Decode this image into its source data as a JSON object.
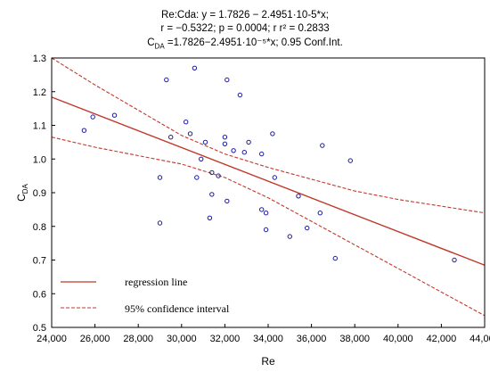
{
  "header": {
    "line1": "Re:Cda:     y = 1.7826 − 2.4951·10-5*x;",
    "line2": "r = −0.5322; p = 0.0004; r     r² = 0.2833",
    "line3": "C_DA =1.7826−2.4951·10⁻⁵*x; 0.95 Conf.Int."
  },
  "chart_data": {
    "type": "scatter",
    "xlabel": "Re",
    "ylabel": "C_DA",
    "xlim": [
      24000,
      44000
    ],
    "ylim": [
      0.5,
      1.3
    ],
    "xticks": [
      "24,000",
      "26,000",
      "28,000",
      "30,000",
      "32,000",
      "34,000",
      "36,000",
      "38,000",
      "40,000",
      "42,000",
      "44,000"
    ],
    "yticks": [
      "0.5",
      "0.6",
      "0.7",
      "0.8",
      "0.9",
      "1.0",
      "1.1",
      "1.2",
      "1.3"
    ],
    "grid": false,
    "regression": {
      "intercept": 1.7826,
      "slope": -2.4951e-05
    },
    "upper_ci": [
      [
        24000,
        1.3
      ],
      [
        26000,
        1.22
      ],
      [
        28000,
        1.145
      ],
      [
        30000,
        1.07
      ],
      [
        32000,
        1.015
      ],
      [
        34000,
        0.975
      ],
      [
        36000,
        0.94
      ],
      [
        38000,
        0.905
      ],
      [
        40000,
        0.88
      ],
      [
        42000,
        0.86
      ],
      [
        44000,
        0.84
      ]
    ],
    "lower_ci": [
      [
        24000,
        1.065
      ],
      [
        26000,
        1.035
      ],
      [
        28000,
        1.01
      ],
      [
        30000,
        0.985
      ],
      [
        32000,
        0.945
      ],
      [
        34000,
        0.885
      ],
      [
        36000,
        0.815
      ],
      [
        38000,
        0.745
      ],
      [
        40000,
        0.675
      ],
      [
        42000,
        0.605
      ],
      [
        44000,
        0.535
      ]
    ],
    "points": [
      [
        25500,
        1.085
      ],
      [
        25900,
        1.125
      ],
      [
        26900,
        1.13
      ],
      [
        29000,
        0.945
      ],
      [
        29000,
        0.81
      ],
      [
        29300,
        1.235
      ],
      [
        29500,
        1.065
      ],
      [
        30200,
        1.11
      ],
      [
        30400,
        1.075
      ],
      [
        30600,
        1.27
      ],
      [
        30700,
        0.945
      ],
      [
        30900,
        1.0
      ],
      [
        31100,
        1.05
      ],
      [
        31300,
        0.825
      ],
      [
        31400,
        0.895
      ],
      [
        31400,
        0.96
      ],
      [
        31700,
        0.95
      ],
      [
        32000,
        1.065
      ],
      [
        32000,
        1.045
      ],
      [
        32100,
        1.235
      ],
      [
        32100,
        0.875
      ],
      [
        32400,
        1.025
      ],
      [
        32700,
        1.19
      ],
      [
        32900,
        1.02
      ],
      [
        33100,
        1.05
      ],
      [
        33700,
        1.015
      ],
      [
        33700,
        0.85
      ],
      [
        33900,
        0.84
      ],
      [
        33900,
        0.79
      ],
      [
        34200,
        1.075
      ],
      [
        34300,
        0.945
      ],
      [
        35000,
        0.77
      ],
      [
        35400,
        0.89
      ],
      [
        35800,
        0.795
      ],
      [
        36400,
        0.84
      ],
      [
        36500,
        1.04
      ],
      [
        37100,
        0.705
      ],
      [
        37800,
        0.995
      ],
      [
        42600,
        0.7
      ]
    ],
    "legend": [
      {
        "label": "regression line",
        "style": "solid",
        "color": "#c0392b"
      },
      {
        "label": "95% confidence interval",
        "style": "dashed",
        "color": "#c0392b"
      }
    ],
    "colors": {
      "line": "#c0392b",
      "points": "#1a1aa0",
      "axis": "#000000"
    }
  }
}
